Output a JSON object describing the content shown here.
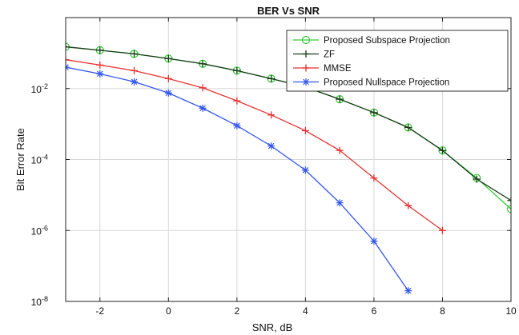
{
  "chart_data": {
    "type": "line",
    "title": "BER Vs SNR",
    "xlabel": "SNR, dB",
    "ylabel": "Bit Error Rate",
    "xlim": [
      -3,
      10
    ],
    "ylim": [
      1e-08,
      1
    ],
    "yscale": "log",
    "grid": true,
    "legend_position": "top-right",
    "x_ticks": [
      -2,
      0,
      2,
      4,
      6,
      8,
      10
    ],
    "y_ticks": [
      {
        "value": 1e-08,
        "base": "10",
        "exp": "-8"
      },
      {
        "value": 1e-06,
        "base": "10",
        "exp": "-6"
      },
      {
        "value": 0.0001,
        "base": "10",
        "exp": "-4"
      },
      {
        "value": 0.01,
        "base": "10",
        "exp": "-2"
      }
    ],
    "series": [
      {
        "name": "Proposed Subspace Projection",
        "color": "#33cc33",
        "marker": "circle",
        "x": [
          -3,
          -2,
          -1,
          0,
          1,
          2,
          3,
          4,
          5,
          6,
          7,
          8,
          9,
          10
        ],
        "y": [
          0.15,
          0.12,
          0.095,
          0.07,
          0.05,
          0.032,
          0.019,
          0.011,
          0.005,
          0.0021,
          0.0008,
          0.00018,
          3e-05,
          4e-06
        ]
      },
      {
        "name": "ZF",
        "color": "#1a3a1a",
        "marker": "plus",
        "x": [
          -3,
          -2,
          -1,
          0,
          1,
          2,
          3,
          4,
          5,
          6,
          7,
          8,
          9,
          10
        ],
        "y": [
          0.15,
          0.12,
          0.095,
          0.07,
          0.05,
          0.032,
          0.019,
          0.011,
          0.005,
          0.0021,
          0.0008,
          0.00018,
          2.8e-05,
          7e-06
        ]
      },
      {
        "name": "MMSE",
        "color": "#e83030",
        "marker": "plus",
        "x": [
          -3,
          -2,
          -1,
          0,
          1,
          2,
          3,
          4,
          5,
          6,
          7,
          8
        ],
        "y": [
          0.065,
          0.046,
          0.032,
          0.019,
          0.0105,
          0.0045,
          0.0018,
          0.00065,
          0.00018,
          3e-05,
          5e-06,
          1e-06
        ]
      },
      {
        "name": "Proposed Nullspace Projection",
        "color": "#3355ee",
        "marker": "asterisk",
        "x": [
          -3,
          -2,
          -1,
          0,
          1,
          2,
          3,
          4,
          5,
          6,
          7
        ],
        "y": [
          0.04,
          0.026,
          0.0155,
          0.0075,
          0.0028,
          0.0009,
          0.00024,
          5e-05,
          6e-06,
          5e-07,
          2e-08
        ]
      }
    ]
  }
}
